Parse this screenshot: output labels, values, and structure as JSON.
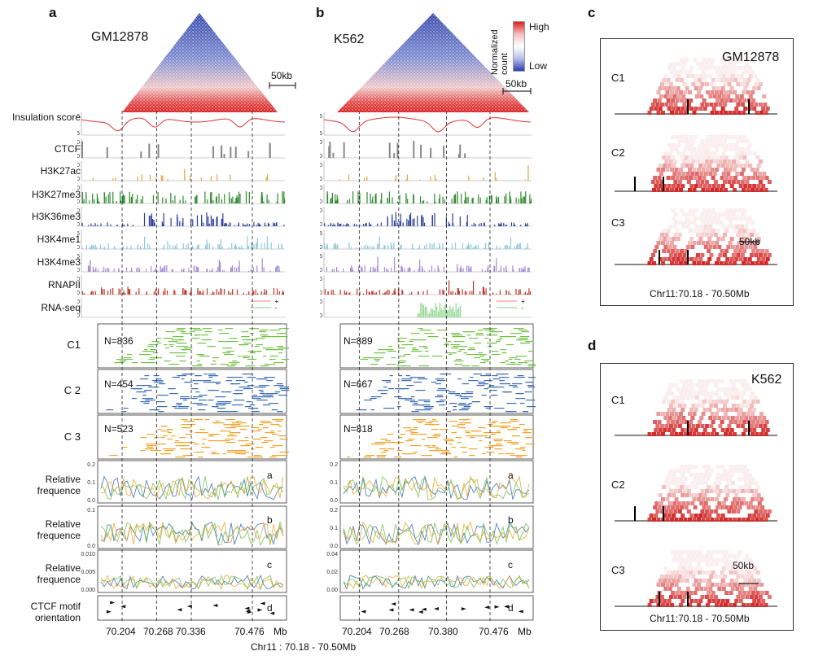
{
  "panels": {
    "a": {
      "letter": "a",
      "cell_line": "GM12878",
      "scale_bar": "50kb",
      "cluster_counts": [
        "N=836",
        "N=454",
        "N=523"
      ],
      "x_ticks": [
        "70.204",
        "70.268",
        "70.336",
        "70.476"
      ],
      "x_unit": "Mb",
      "freq_panel_letters": [
        "a",
        "b",
        "c",
        "d"
      ],
      "freq_yticks": [
        [
          "0.2",
          "0.1",
          "0.0"
        ],
        [
          "0.1",
          "0.0"
        ],
        [
          "0.010",
          "0.005",
          "0.000"
        ]
      ]
    },
    "b": {
      "letter": "b",
      "cell_line": "K562",
      "scale_bar": "50kb",
      "colorbar_title": "Normalized count",
      "colorbar_high": "High",
      "colorbar_low": "Low",
      "cluster_counts": [
        "N=889",
        "N=667",
        "N=818"
      ],
      "x_ticks": [
        "70.204",
        "70.268",
        "70.380",
        "70.476"
      ],
      "x_unit": "Mb",
      "freq_panel_letters": [
        "a",
        "b",
        "c",
        "d"
      ],
      "freq_yticks": [
        [
          "0.2",
          "0.1",
          "0.0"
        ],
        [
          "0.2",
          "0.1",
          "0.0"
        ],
        [
          "0.04",
          "0.02",
          "0.00"
        ]
      ],
      "rna_legend": [
        "+",
        "-"
      ]
    },
    "c": {
      "letter": "c",
      "cell_line": "GM12878",
      "scale_bar": "50kb",
      "clusters": [
        "C1",
        "C2",
        "C3"
      ],
      "coords": "Chr11:70.18 - 70.50Mb"
    },
    "d": {
      "letter": "d",
      "cell_line": "K562",
      "scale_bar": "50kb",
      "clusters": [
        "C1",
        "C2",
        "C3"
      ],
      "coords": "Chr11:70.18 - 70.50Mb"
    }
  },
  "track_labels": {
    "insulation": "Insulation score",
    "ctcf": "CTCF",
    "h3k27ac": "H3K27ac",
    "h3k27me3": "H3K27me3",
    "h3k36me3": "H3K36me3",
    "h3k4me1": "H3K4me1",
    "h3k4me3": "H3K4me3",
    "rnapii": "RNAPII",
    "rnaseq": "RNA-seq",
    "c1": "C1",
    "c2": "C 2",
    "c3": "C 3",
    "rel1": "Relative frequence",
    "rel2": "Relative frequence",
    "rel3": "Relative frequence",
    "motif": "CTCF motif orientation"
  },
  "track_ticks": {
    "insulation": [
      "0.5",
      "-0.5"
    ],
    "ctcf": [
      "300",
      "0"
    ],
    "h3k27ac": [
      "80",
      "0"
    ],
    "h3k27me3": [
      "20",
      "0"
    ],
    "h3k36me3": [
      "20",
      "0"
    ],
    "h3k4me1": [
      "25",
      "0"
    ],
    "h3k4me3": [
      "25",
      "0"
    ],
    "rnapii": [
      "50",
      "0"
    ],
    "rnaseq": [
      "10",
      "0"
    ]
  },
  "colors": {
    "ctcf": "#888888",
    "h3k27ac": "#e8a23a",
    "h3k27me3": "#2e8b2e",
    "h3k36me3": "#2b3f9e",
    "h3k4me1": "#8ec9dd",
    "h3k4me3": "#a48bd1",
    "rnapii": "#c0392b",
    "insulation": "#d33",
    "cluster1": "#74c24a",
    "cluster2": "#3a6cb5",
    "cluster3": "#f0a42a"
  },
  "coords_label": "Chr11 : 70.18 - 70.50Mb"
}
